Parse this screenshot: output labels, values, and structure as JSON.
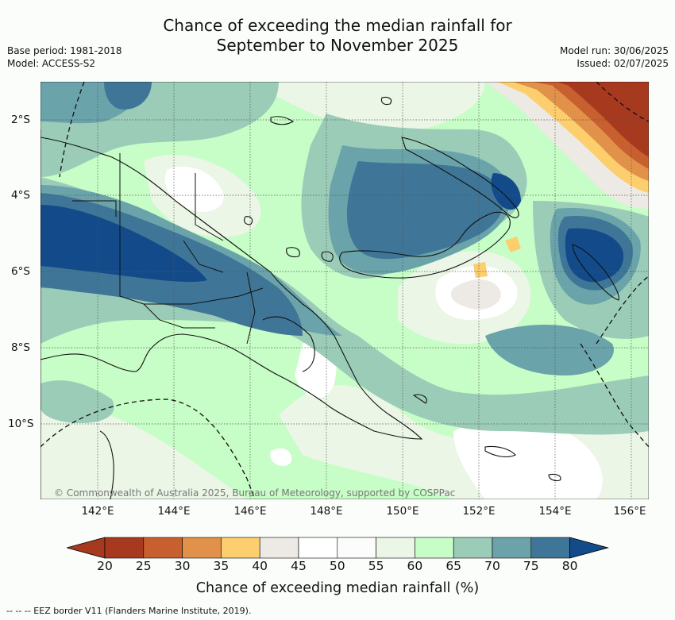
{
  "title_line1": "Chance of exceeding the median rainfall for",
  "title_line2": "September to November 2025",
  "base_period": "Base period: 1981-2018",
  "model": "Model: ACCESS-S2",
  "model_run": "Model run: 30/06/2025",
  "issued": "Issued: 02/07/2025",
  "copyright": "© Commonwealth of Australia 2025, Bureau of Meteorology, supported by COSPPac",
  "lat_labels": [
    "2°S",
    "4°S",
    "6°S",
    "8°S",
    "10°S"
  ],
  "lon_labels": [
    "142°E",
    "144°E",
    "146°E",
    "148°E",
    "150°E",
    "152°E",
    "154°E",
    "156°E"
  ],
  "colorbar_ticks": [
    "20",
    "25",
    "30",
    "35",
    "40",
    "45",
    "50",
    "55",
    "60",
    "65",
    "70",
    "75",
    "80"
  ],
  "colorbar_colors": [
    "#a7391f",
    "#c85f2e",
    "#e2914a",
    "#fdce6d",
    "#ede9e4",
    "#ffffff",
    "#fcfcfc",
    "#ebf6e6",
    "#c7fdc6",
    "#9bccb8",
    "#6aa3aa",
    "#3f7698",
    "#134b8a"
  ],
  "colorbar_label": "Chance of exceeding median rainfall (%)",
  "legend_line": "--  --  -- EEZ border V11 (Flanders Marine Institute, 2019)."
}
